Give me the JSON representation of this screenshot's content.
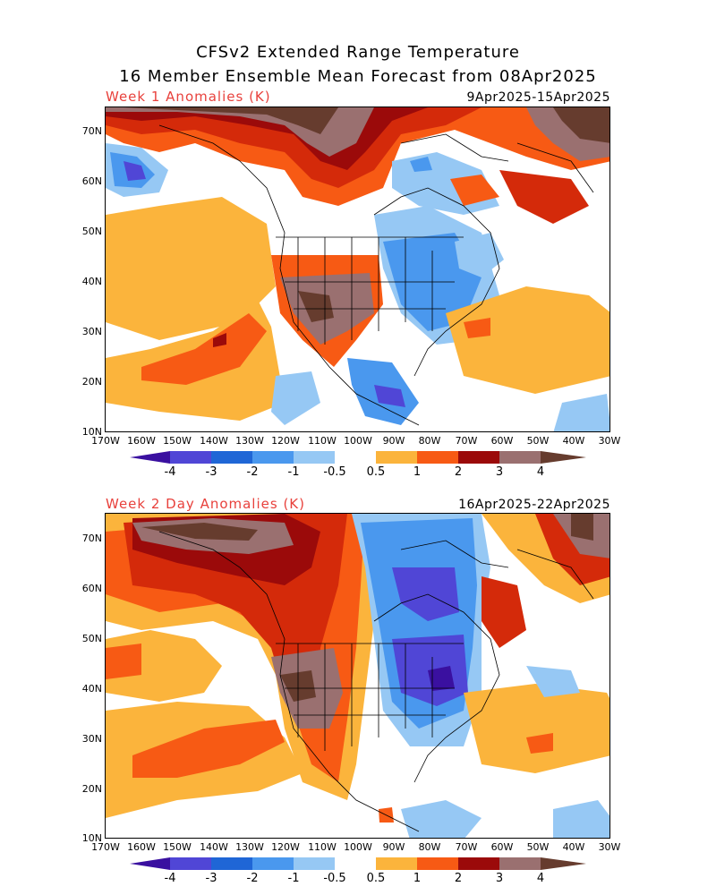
{
  "header": {
    "line1": "CFSv2 Extended Range Temperature",
    "line2": "16 Member Ensemble Mean Forecast from 08Apr2025"
  },
  "panels": [
    {
      "label": "Week 1 Anomalies (K)",
      "dates": "9Apr2025-15Apr2025"
    },
    {
      "label": "Week 2 Day Anomalies (K)",
      "dates": "16Apr2025-22Apr2025"
    }
  ],
  "axes": {
    "lat_labels": [
      "70N",
      "60N",
      "50N",
      "40N",
      "30N",
      "20N",
      "10N"
    ],
    "lon_labels": [
      "170W",
      "160W",
      "150W",
      "140W",
      "130W",
      "120W",
      "110W",
      "100W",
      "90W",
      "80W",
      "70W",
      "60W",
      "50W",
      "40W",
      "30W"
    ]
  },
  "colorbar": {
    "labels": [
      "-4",
      "-3",
      "-2",
      "-1",
      "-0.5",
      "0.5",
      "1",
      "2",
      "3",
      "4"
    ],
    "colors": [
      "#3a10a0",
      "#5046d6",
      "#1f66d6",
      "#4a98ee",
      "#96c8f4",
      "#ffffff",
      "#fbb43c",
      "#f75a14",
      "#d42a0a",
      "#9b0a0a",
      "#9a7070",
      "#663c2e"
    ]
  },
  "palette": {
    "title_red": "#e8413c",
    "dark_brown": "#663c2e",
    "brown": "#9a7070",
    "dark_red": "#9b0a0a",
    "red": "#d42a0a",
    "orange_red": "#f75a14",
    "orange": "#fbb43c",
    "light_blue": "#96c8f4",
    "blue": "#4a98ee",
    "mid_blue": "#1f66d6",
    "purple": "#5046d6"
  }
}
